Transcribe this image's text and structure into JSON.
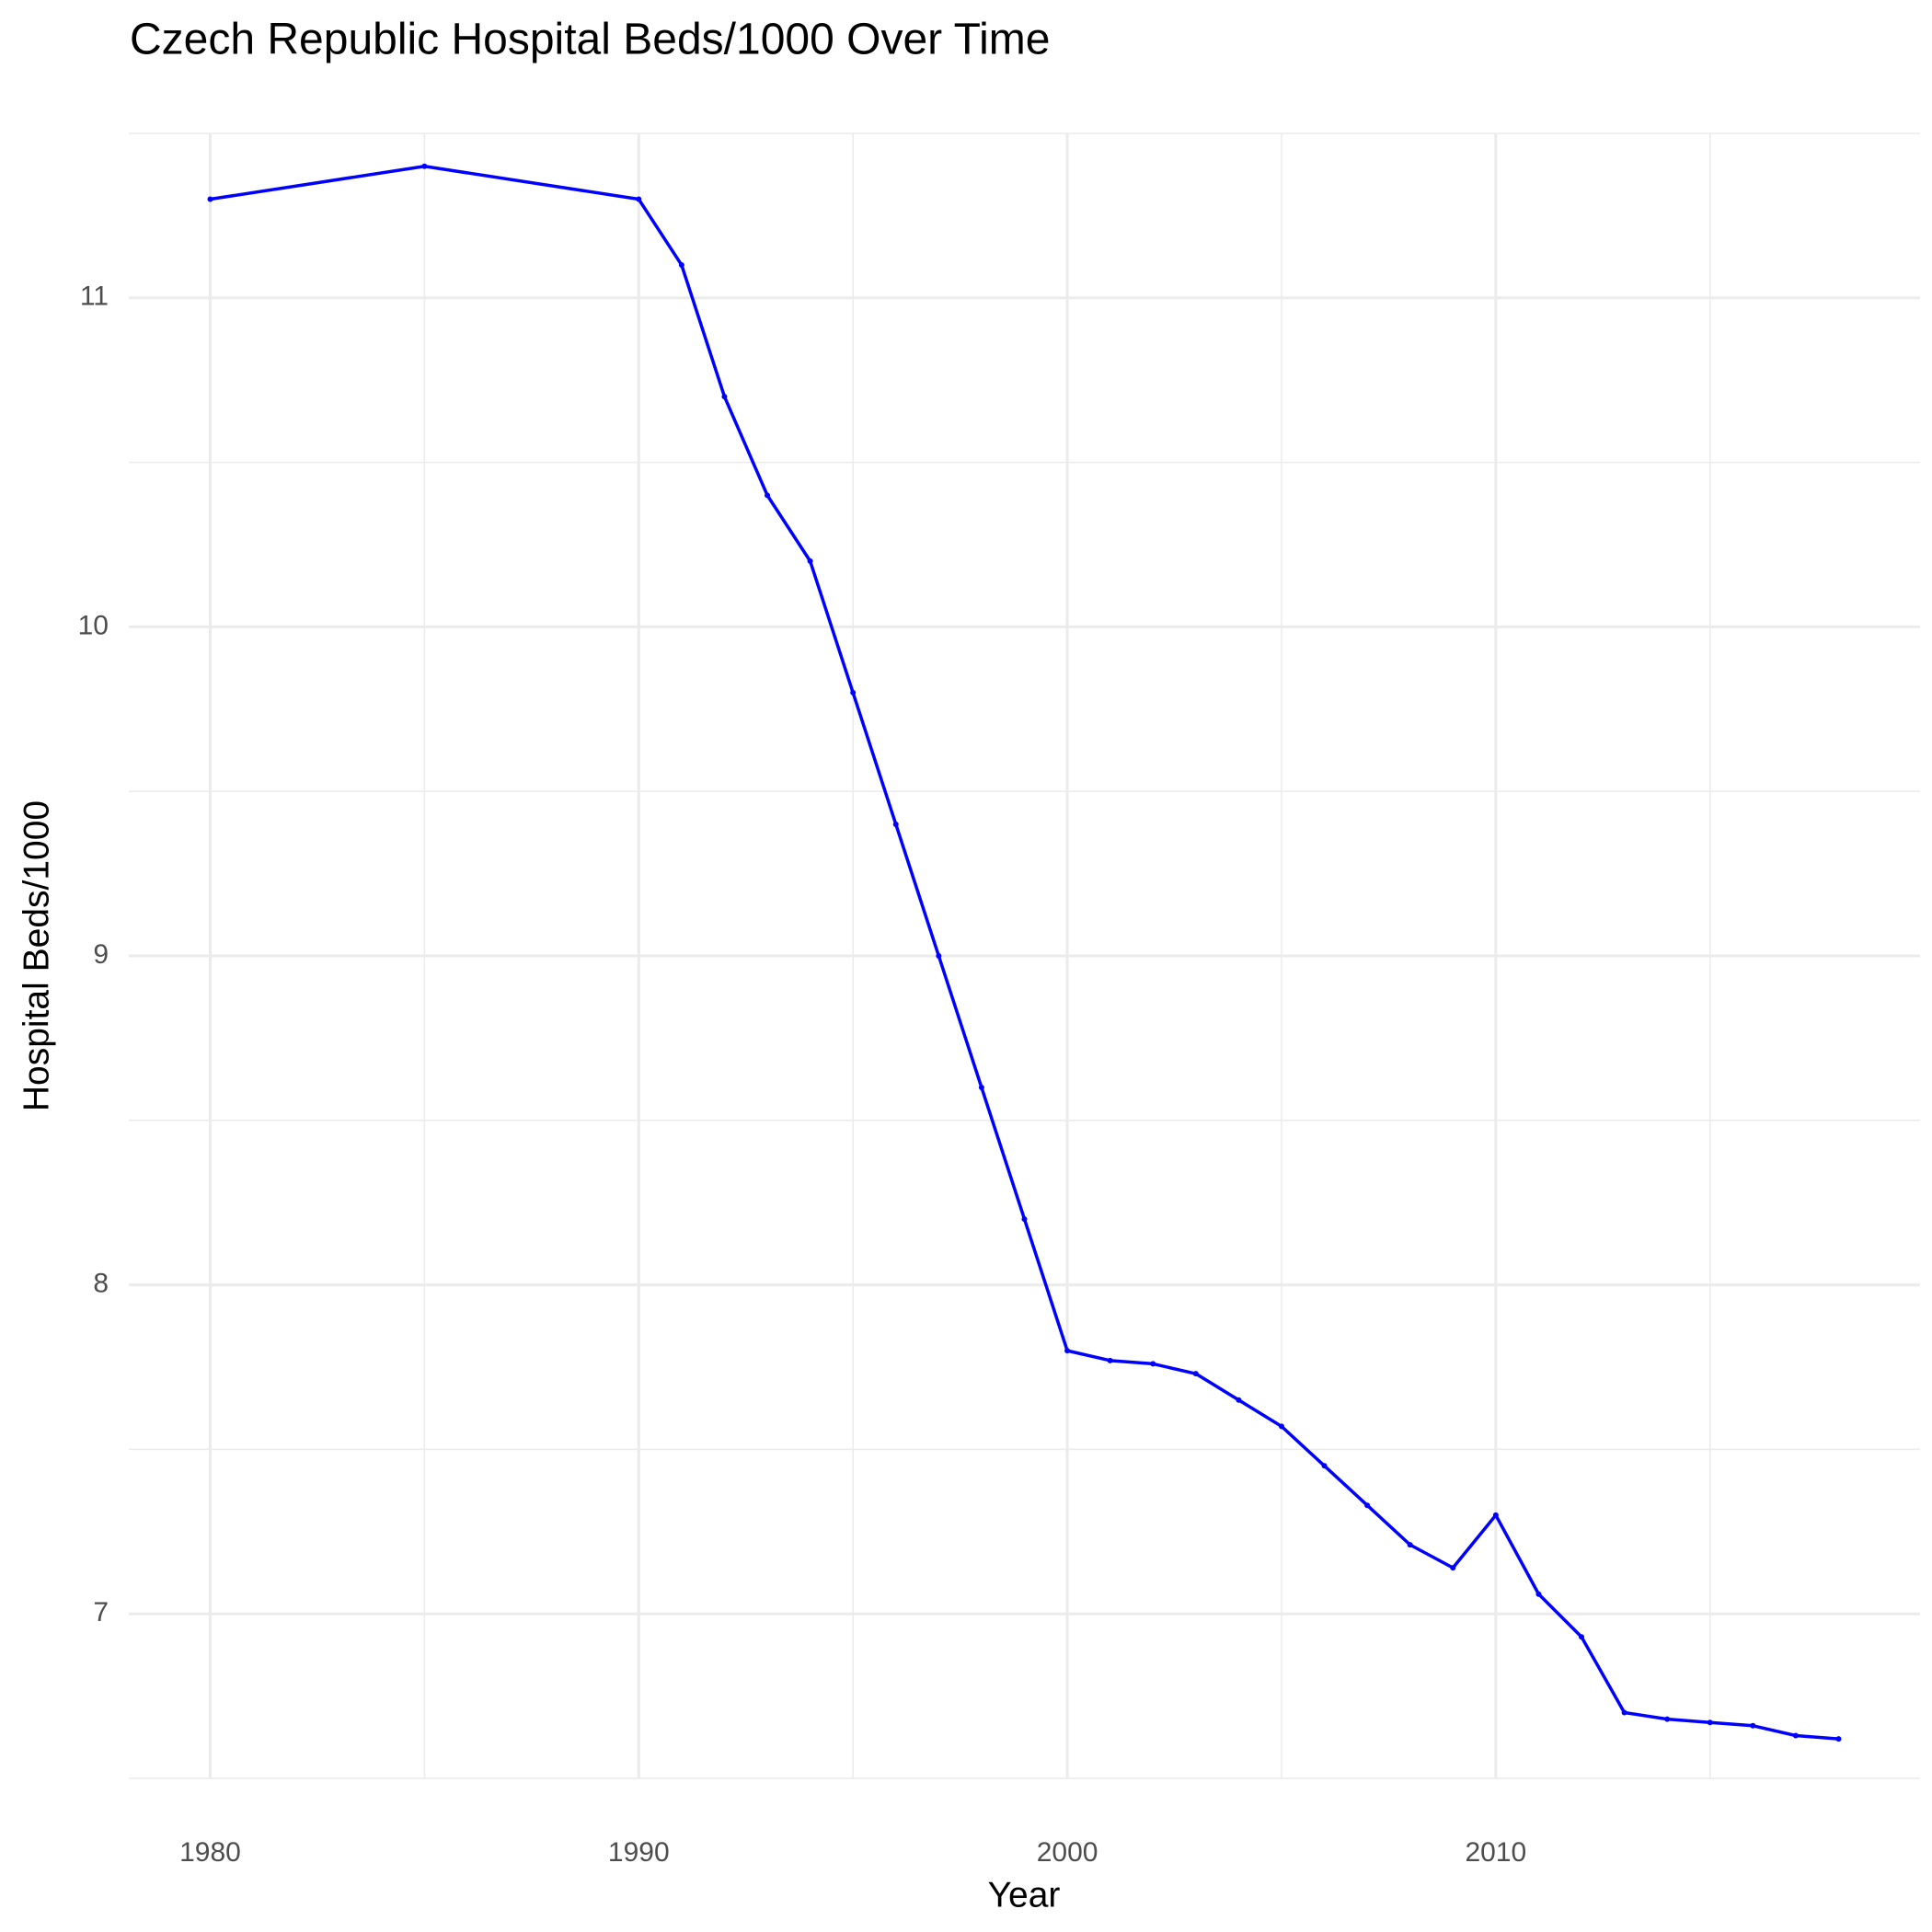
{
  "chart_data": {
    "type": "line",
    "title": "Czech Republic Hospital Beds/1000 Over Time",
    "x_label": "Year",
    "y_label": "Hospital Beds/1000",
    "x": [
      1980,
      1985,
      1990,
      1991,
      1992,
      1993,
      1994,
      1995,
      1996,
      1997,
      1998,
      1999,
      2000,
      2001,
      2002,
      2003,
      2004,
      2005,
      2006,
      2007,
      2008,
      2009,
      2010,
      2011,
      2012,
      2013,
      2014,
      2015,
      2016,
      2017,
      2018
    ],
    "series": [
      {
        "name": "Hospital Beds/1000",
        "color": "#0000ff",
        "values": [
          11.3,
          11.4,
          11.3,
          11.1,
          10.7,
          10.4,
          10.2,
          9.8,
          9.4,
          9.0,
          8.6,
          8.2,
          7.8,
          7.77,
          7.76,
          7.73,
          7.65,
          7.57,
          7.45,
          7.33,
          7.21,
          7.14,
          7.3,
          7.06,
          6.93,
          6.7,
          6.68,
          6.67,
          6.66,
          6.63,
          6.62
        ]
      }
    ],
    "xlim": [
      1978.1,
      2019.9
    ],
    "xticks": [
      1980,
      1990,
      2000,
      2010
    ],
    "ylim": [
      6.5,
      11.5
    ],
    "yticks": [
      7,
      8,
      9,
      10,
      11
    ],
    "grid": true
  }
}
